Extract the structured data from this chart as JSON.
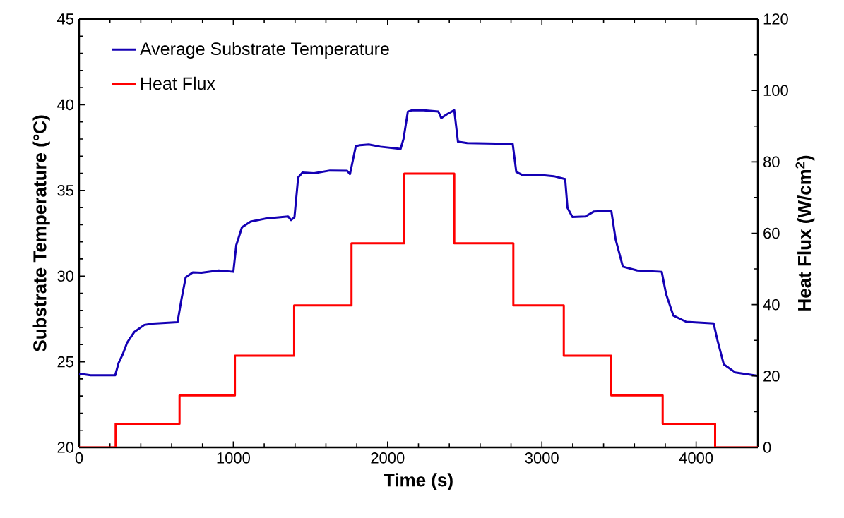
{
  "chart_data": {
    "type": "line",
    "xlabel": "Time (s)",
    "ylabel": "Substrate Temperature (°C)",
    "y2label": "Heat Flux (W/cm$^{2}$)",
    "xlim": [
      0,
      4400
    ],
    "xticks": [
      0,
      1000,
      2000,
      3000,
      4000
    ],
    "ylim": [
      20,
      45
    ],
    "yticks": [
      20,
      25,
      30,
      35,
      40,
      45
    ],
    "y2lim": [
      0,
      120
    ],
    "y2ticks": [
      0,
      20,
      40,
      60,
      80,
      100,
      120
    ],
    "grid": false,
    "legend": "top left",
    "marker": "none",
    "line_style": "solid",
    "series": [
      {
        "name": "Average Substrate Temperature",
        "color": "#1400b4",
        "x": [
          0,
          75,
          234,
          256,
          283,
          311,
          357,
          423,
          479,
          638,
          663,
          691,
          737,
          793,
          905,
          1000,
          1019,
          1056,
          1112,
          1206,
          1355,
          1374,
          1396,
          1420,
          1448,
          1523,
          1626,
          1738,
          1756,
          1794,
          1822,
          1878,
          1953,
          2084,
          2103,
          2131,
          2159,
          2235,
          2329,
          2348,
          2385,
          2432,
          2456,
          2516,
          2703,
          2811,
          2834,
          2871,
          2983,
          3077,
          3151,
          3166,
          3198,
          3282,
          3338,
          3450,
          3478,
          3525,
          3618,
          3777,
          3805,
          3852,
          3936,
          4113,
          4138,
          4179,
          4253,
          4400
        ],
        "values": [
          24.3,
          24.21,
          24.21,
          24.93,
          25.44,
          26.11,
          26.73,
          27.15,
          27.23,
          27.31,
          28.62,
          29.93,
          30.21,
          30.19,
          30.33,
          30.25,
          31.81,
          32.85,
          33.18,
          33.35,
          33.48,
          33.27,
          33.43,
          35.75,
          36.04,
          36.0,
          36.16,
          36.14,
          35.95,
          37.59,
          37.64,
          37.68,
          37.55,
          37.42,
          38.0,
          39.6,
          39.68,
          39.68,
          39.6,
          39.22,
          39.45,
          39.68,
          37.84,
          37.76,
          37.73,
          37.71,
          36.08,
          35.91,
          35.91,
          35.83,
          35.66,
          33.98,
          33.45,
          33.48,
          33.77,
          33.82,
          32.14,
          30.55,
          30.33,
          30.25,
          28.96,
          27.7,
          27.33,
          27.24,
          26.27,
          24.85,
          24.38,
          24.18
        ]
      },
      {
        "name": "Heat Flux",
        "color": "#ff0000",
        "type": "step",
        "axis": "y2",
        "x": [
          0,
          237,
          651,
          1010,
          1394,
          1766,
          2108,
          2432,
          2815,
          3142,
          3450,
          3783,
          4123,
          4400
        ],
        "values": [
          0,
          6.6,
          14.6,
          25.7,
          39.8,
          57.2,
          76.7,
          57.2,
          39.8,
          25.7,
          14.6,
          6.6,
          0,
          0
        ]
      }
    ]
  }
}
